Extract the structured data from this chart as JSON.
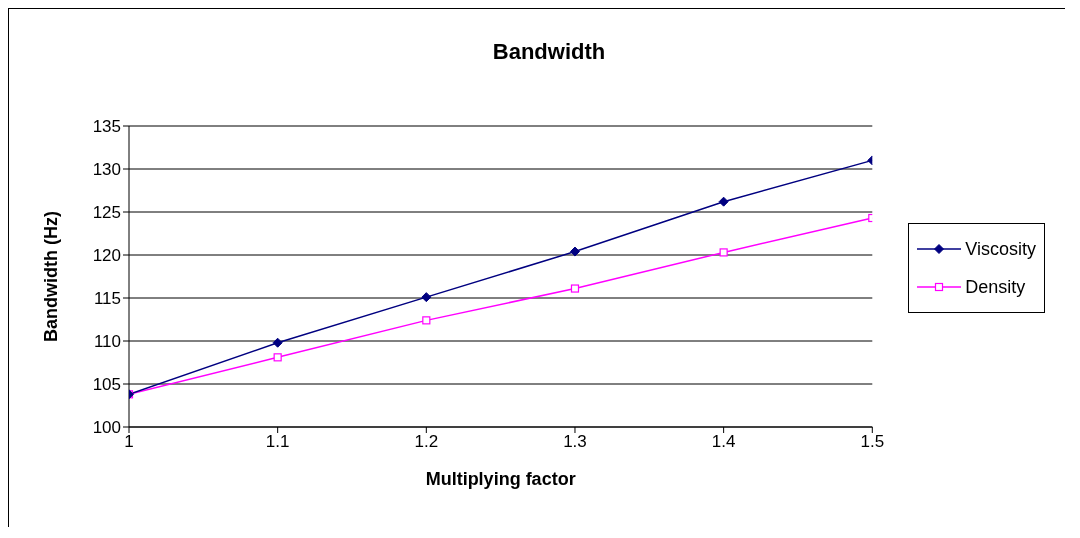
{
  "chart_data": {
    "type": "line",
    "title": "Bandwidth",
    "xlabel": "Multiplying factor",
    "ylabel": "Bandwidth (Hz)",
    "x": [
      1,
      1.1,
      1.2,
      1.3,
      1.4,
      1.5
    ],
    "series": [
      {
        "name": "Viscosity",
        "color": "#000080",
        "marker": "diamond",
        "values": [
          103.8,
          109.8,
          115.1,
          120.4,
          126.2,
          131.0
        ]
      },
      {
        "name": "Density",
        "color": "#ff00ff",
        "marker": "square",
        "values": [
          103.8,
          108.1,
          112.4,
          116.1,
          120.3,
          124.3
        ]
      }
    ],
    "xlim": [
      1,
      1.5
    ],
    "xticks": [
      1,
      1.1,
      1.2,
      1.3,
      1.4,
      1.5
    ],
    "ylim": [
      100,
      135
    ],
    "yticks": [
      100,
      105,
      110,
      115,
      120,
      125,
      130,
      135
    ],
    "grid": "y",
    "legend": "right",
    "line_style": "solid"
  }
}
